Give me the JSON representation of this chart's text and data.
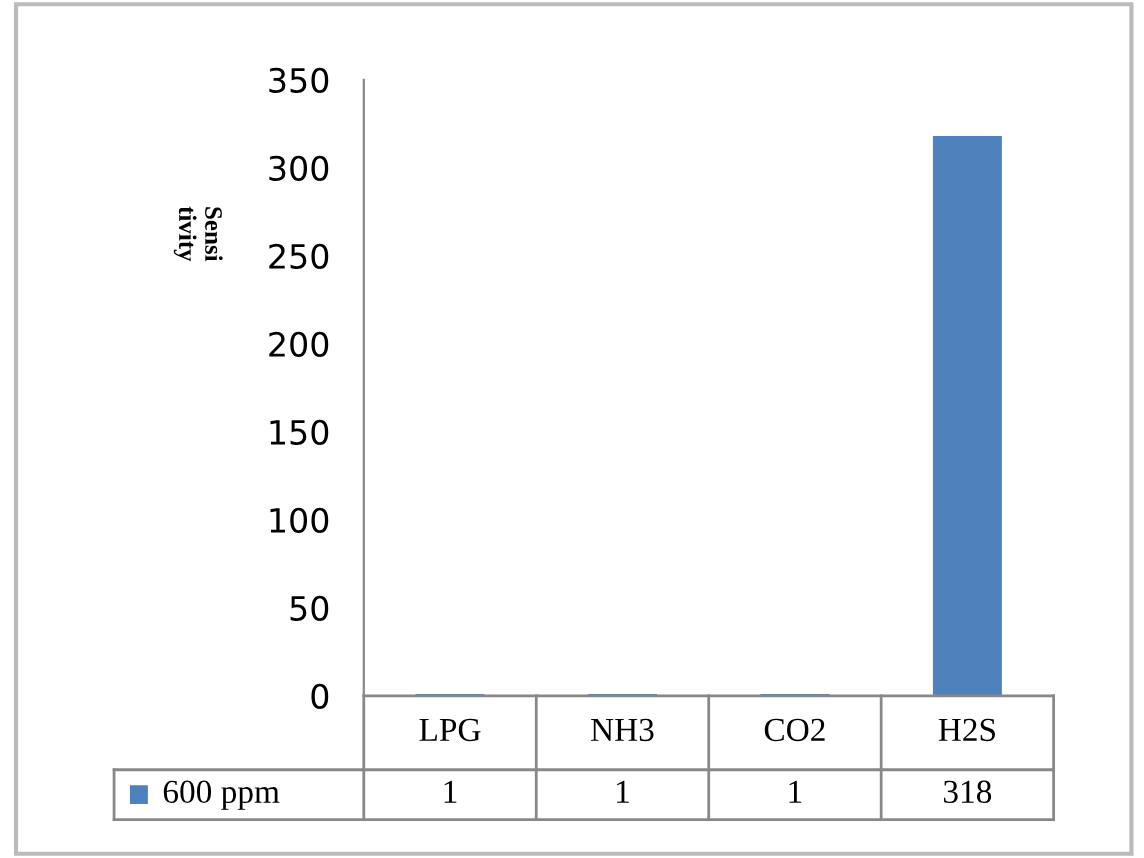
{
  "chart_data": {
    "type": "bar",
    "ylabel": "Sensi\ntivity",
    "categories": [
      "LPG",
      "NH3",
      "CO2",
      "H2S"
    ],
    "series": [
      {
        "name": "600 ppm",
        "color": "#4f81bd",
        "values": [
          1,
          1,
          1,
          318
        ]
      }
    ],
    "ylim": [
      0,
      350
    ],
    "yticks": [
      0,
      50,
      100,
      150,
      200,
      250,
      300,
      350
    ],
    "data_labels": true,
    "grid": false,
    "legend": "bottom"
  }
}
